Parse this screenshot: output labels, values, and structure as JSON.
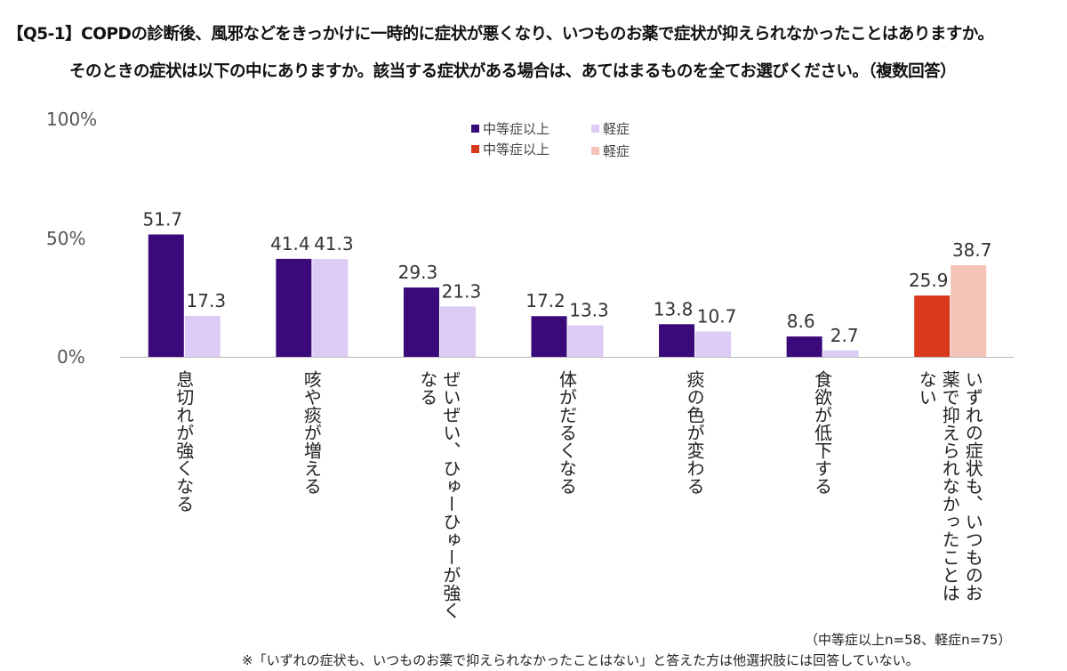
{
  "title_line1": "【Q5-1】COPDの診断後、風邪などをきっかけに一時的に症状が悪くなり、いつものお薬で症状が抑えられなかったことはありますか。",
  "title_line2": "そのときの症状は以下の中にありますか。該当する症状がある場合は、あてはまるものを全てお選びください。（複数回答）",
  "sample_note": "（中等症以上n=58、軽症n=75）",
  "footnote": "※「いずれの症状も、いつものお薬で抑えられなかったことはない」と答えた方は他選択肢には回答していない。",
  "legend": [
    {
      "label": "中等症以上",
      "color": "#3b0a7a"
    },
    {
      "label": "軽症",
      "color": "#dccbf5"
    },
    {
      "label": "中等症以上",
      "color": "#d8391a"
    },
    {
      "label": "軽症",
      "color": "#f5c3b7"
    }
  ],
  "chart_data": {
    "type": "bar",
    "ylim": [
      0,
      100
    ],
    "yticks": [
      "0%",
      "50%",
      "100%"
    ],
    "grid": false,
    "legend_position": "top-center",
    "categories": [
      {
        "label": "息切れが強くなる",
        "lines": [
          "息切れが強くなる"
        ]
      },
      {
        "label": "咳や痰が増える",
        "lines": [
          "咳や痰が増える"
        ]
      },
      {
        "label": "ぜいぜい、ひゅーひゅーが強くなる",
        "lines": [
          "ぜいぜい、ひゅーひゅーが強く",
          "なる"
        ]
      },
      {
        "label": "体がだるくなる",
        "lines": [
          "体がだるくなる"
        ]
      },
      {
        "label": "痰の色が変わる",
        "lines": [
          "痰の色が変わる"
        ]
      },
      {
        "label": "食欲が低下する",
        "lines": [
          "食欲が低下する"
        ]
      },
      {
        "label": "いずれの症状も、いつものお薬で抑えられなかったことはない",
        "lines": [
          "いずれの症状も、いつものお",
          "薬で抑えられなかったことは",
          "ない"
        ]
      }
    ],
    "series": [
      {
        "name": "中等症以上",
        "values": [
          51.7,
          41.4,
          29.3,
          17.2,
          13.8,
          8.6,
          25.9
        ],
        "labels": [
          "51.7",
          "41.4",
          "29.3",
          "17.2",
          "13.8",
          "8.6",
          "25.9"
        ],
        "colors": [
          "#3b0a7a",
          "#3b0a7a",
          "#3b0a7a",
          "#3b0a7a",
          "#3b0a7a",
          "#3b0a7a",
          "#d8391a"
        ]
      },
      {
        "name": "軽症",
        "values": [
          17.3,
          41.3,
          21.3,
          13.3,
          10.7,
          2.7,
          38.7
        ],
        "labels": [
          "17.3",
          "41.3",
          "21.3",
          "13.3",
          "10.7",
          "2.7",
          "38.7"
        ],
        "colors": [
          "#dccbf5",
          "#dccbf5",
          "#dccbf5",
          "#dccbf5",
          "#dccbf5",
          "#dccbf5",
          "#f5c3b7"
        ]
      }
    ]
  }
}
